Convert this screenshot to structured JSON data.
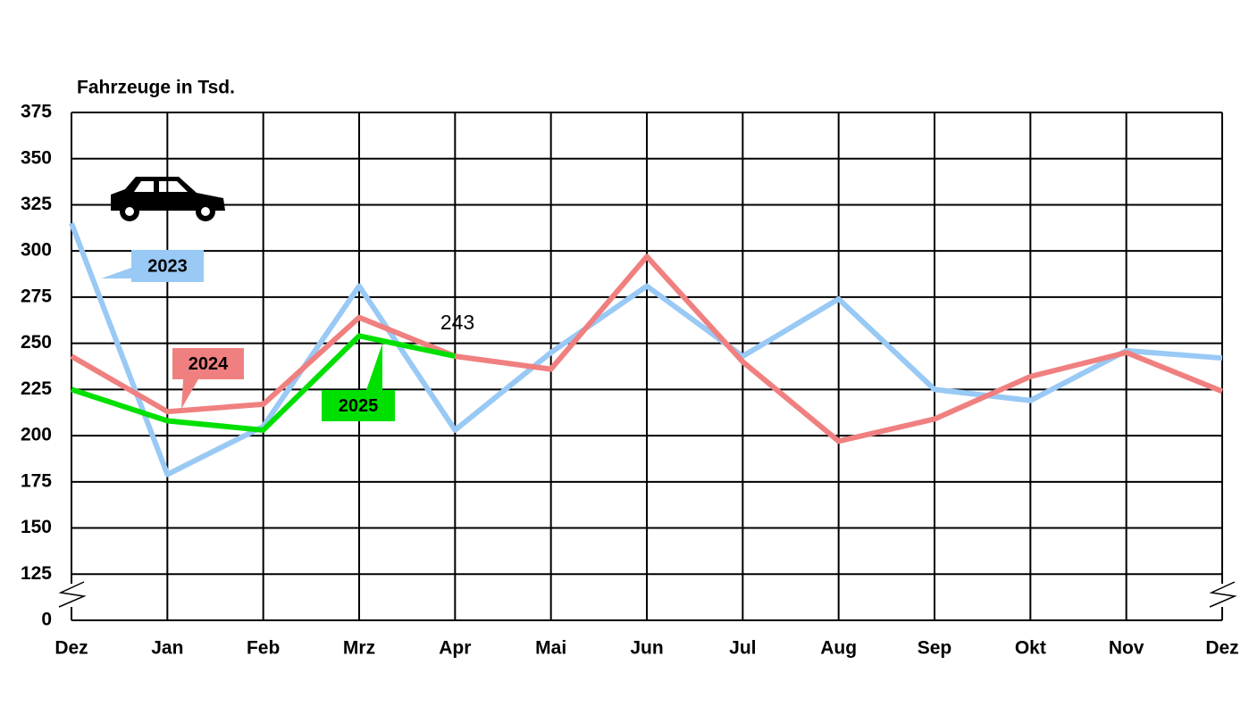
{
  "chart_data": {
    "type": "line",
    "title": "Fahrzeuge in Tsd.",
    "categories": [
      "Dez",
      "Jan",
      "Feb",
      "Mrz",
      "Apr",
      "Mai",
      "Jun",
      "Jul",
      "Aug",
      "Sep",
      "Okt",
      "Nov",
      "Dez"
    ],
    "series": [
      {
        "name": "2023",
        "color": "#99c9f5",
        "values": [
          315,
          179,
          205,
          281,
          203,
          245,
          281,
          243,
          274,
          225,
          219,
          246,
          242
        ]
      },
      {
        "name": "2024",
        "color": "#f08080",
        "values": [
          243,
          213,
          217,
          264,
          243,
          236,
          297,
          240,
          197,
          209,
          232,
          245,
          224
        ]
      },
      {
        "name": "2025",
        "color": "#00e000",
        "values": [
          225,
          208,
          203,
          254,
          243,
          null,
          null,
          null,
          null,
          null,
          null,
          null,
          null
        ]
      }
    ],
    "annotations": [
      "243"
    ],
    "ylim": [
      100,
      375
    ],
    "yticks": [
      {
        "value": 100,
        "label": "0"
      },
      125,
      150,
      175,
      200,
      225,
      250,
      275,
      300,
      325,
      350,
      375
    ],
    "grid": true
  }
}
